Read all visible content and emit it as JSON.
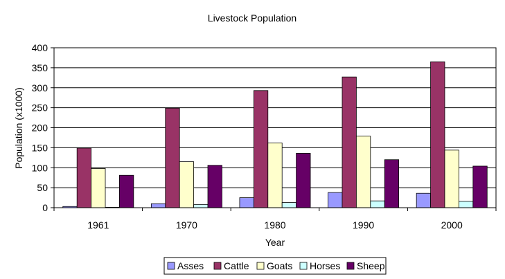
{
  "chart_data": {
    "type": "bar",
    "title": "Livestock Population",
    "xlabel": "Year",
    "ylabel": "Population (x1000)",
    "categories": [
      "1961",
      "1970",
      "1980",
      "1990",
      "2000"
    ],
    "ylim": [
      0,
      400
    ],
    "yticks": [
      0,
      50,
      100,
      150,
      200,
      250,
      300,
      350,
      400
    ],
    "grid": true,
    "legend_position": "bottom",
    "series": [
      {
        "name": "Asses",
        "color": "#9999ff",
        "values": [
          3,
          10,
          25,
          38,
          36
        ]
      },
      {
        "name": "Cattle",
        "color": "#993366",
        "values": [
          149,
          249,
          293,
          327,
          365
        ]
      },
      {
        "name": "Goats",
        "color": "#ffffcc",
        "values": [
          98,
          115,
          162,
          179,
          144
        ]
      },
      {
        "name": "Horses",
        "color": "#ccffff",
        "values": [
          1,
          8,
          13,
          17,
          16
        ]
      },
      {
        "name": "Sheep",
        "color": "#660066",
        "values": [
          81,
          106,
          136,
          120,
          104
        ]
      }
    ]
  }
}
